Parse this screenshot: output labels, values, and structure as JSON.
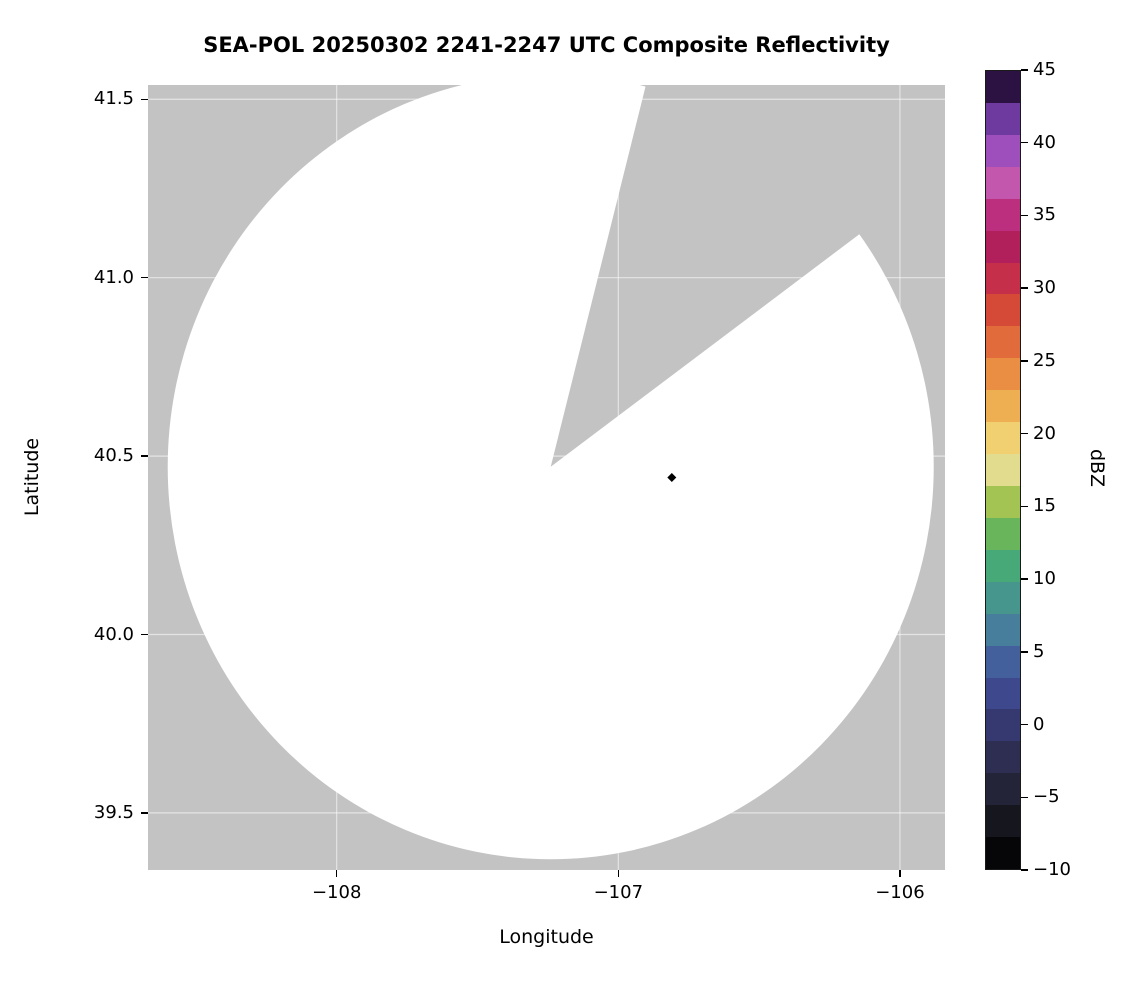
{
  "chart_data": {
    "type": "heatmap",
    "title": "SEA-POL 20250302 2241-2247 UTC Composite Reflectivity",
    "xlabel": "Longitude",
    "ylabel": "Latitude",
    "xlim": [
      -108.67,
      -105.84
    ],
    "ylim": [
      39.34,
      41.54
    ],
    "x_ticks": [
      -108,
      -107,
      -106
    ],
    "x_tick_labels": [
      "−108",
      "−107",
      "−106"
    ],
    "y_ticks": [
      39.5,
      40.0,
      40.5,
      41.0,
      41.5
    ],
    "y_tick_labels": [
      "39.5",
      "40.0",
      "40.5",
      "41.0",
      "41.5"
    ],
    "grid": true,
    "grid_color": "rgba(255,255,255,0.55)",
    "no_data_color": "#c3c3c3",
    "coverage": {
      "description": "Radar scan coverage area shown white (no reflectivity above threshold); surrounding gray is outside coverage / missing data",
      "center_lon": -107.24,
      "center_lat": 40.47,
      "radius_lon_deg": 1.36,
      "radius_lat_deg": 1.1,
      "fill": "#ffffff",
      "missing_sector": {
        "azimuth_start_deg": 14,
        "azimuth_end_deg": 53
      }
    },
    "marker": {
      "lon": -106.81,
      "lat": 40.44,
      "shape": "diamond",
      "color": "#000000"
    },
    "colorbar": {
      "label": "dBZ",
      "min": -10,
      "max": 45,
      "ticks": [
        45,
        40,
        35,
        30,
        25,
        20,
        15,
        10,
        5,
        0,
        -5,
        -10
      ],
      "tick_labels": [
        "45",
        "40",
        "35",
        "30",
        "25",
        "20",
        "15",
        "10",
        "5",
        "0",
        "−5",
        "−10"
      ],
      "band_colors_bottom_to_top": [
        "#060608",
        "#16161f",
        "#242438",
        "#2e2e52",
        "#36396f",
        "#3d498c",
        "#43609c",
        "#477e9c",
        "#46968e",
        "#47a878",
        "#68b55c",
        "#a3c452",
        "#e2dd8e",
        "#f0d070",
        "#eeae52",
        "#e98e43",
        "#e16b3a",
        "#d54937",
        "#c52f4a",
        "#b2205c",
        "#bb2f7e",
        "#c357ae",
        "#9e4fbb",
        "#6f3a9f",
        "#2c1242"
      ]
    }
  }
}
